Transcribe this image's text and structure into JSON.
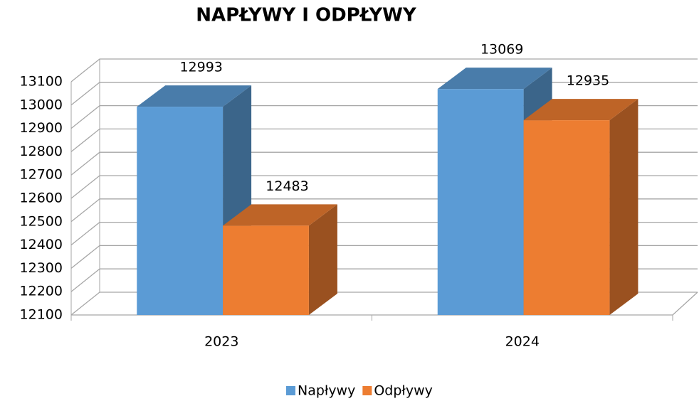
{
  "chart_data": {
    "type": "bar3d",
    "title": "NAPŁYWY I ODPŁYWY",
    "categories": [
      "2023",
      "2024"
    ],
    "series": [
      {
        "name": "Napływy",
        "color": "#5b9bd5",
        "values": [
          12993,
          13069
        ]
      },
      {
        "name": "Odpływy",
        "color": "#ed7d31",
        "values": [
          12483,
          12935
        ]
      }
    ],
    "ylim": [
      12100,
      13100
    ],
    "yticks": [
      12100,
      12200,
      12300,
      12400,
      12500,
      12600,
      12700,
      12800,
      12900,
      13000,
      13100
    ],
    "grid": true,
    "legend": "bottom"
  }
}
